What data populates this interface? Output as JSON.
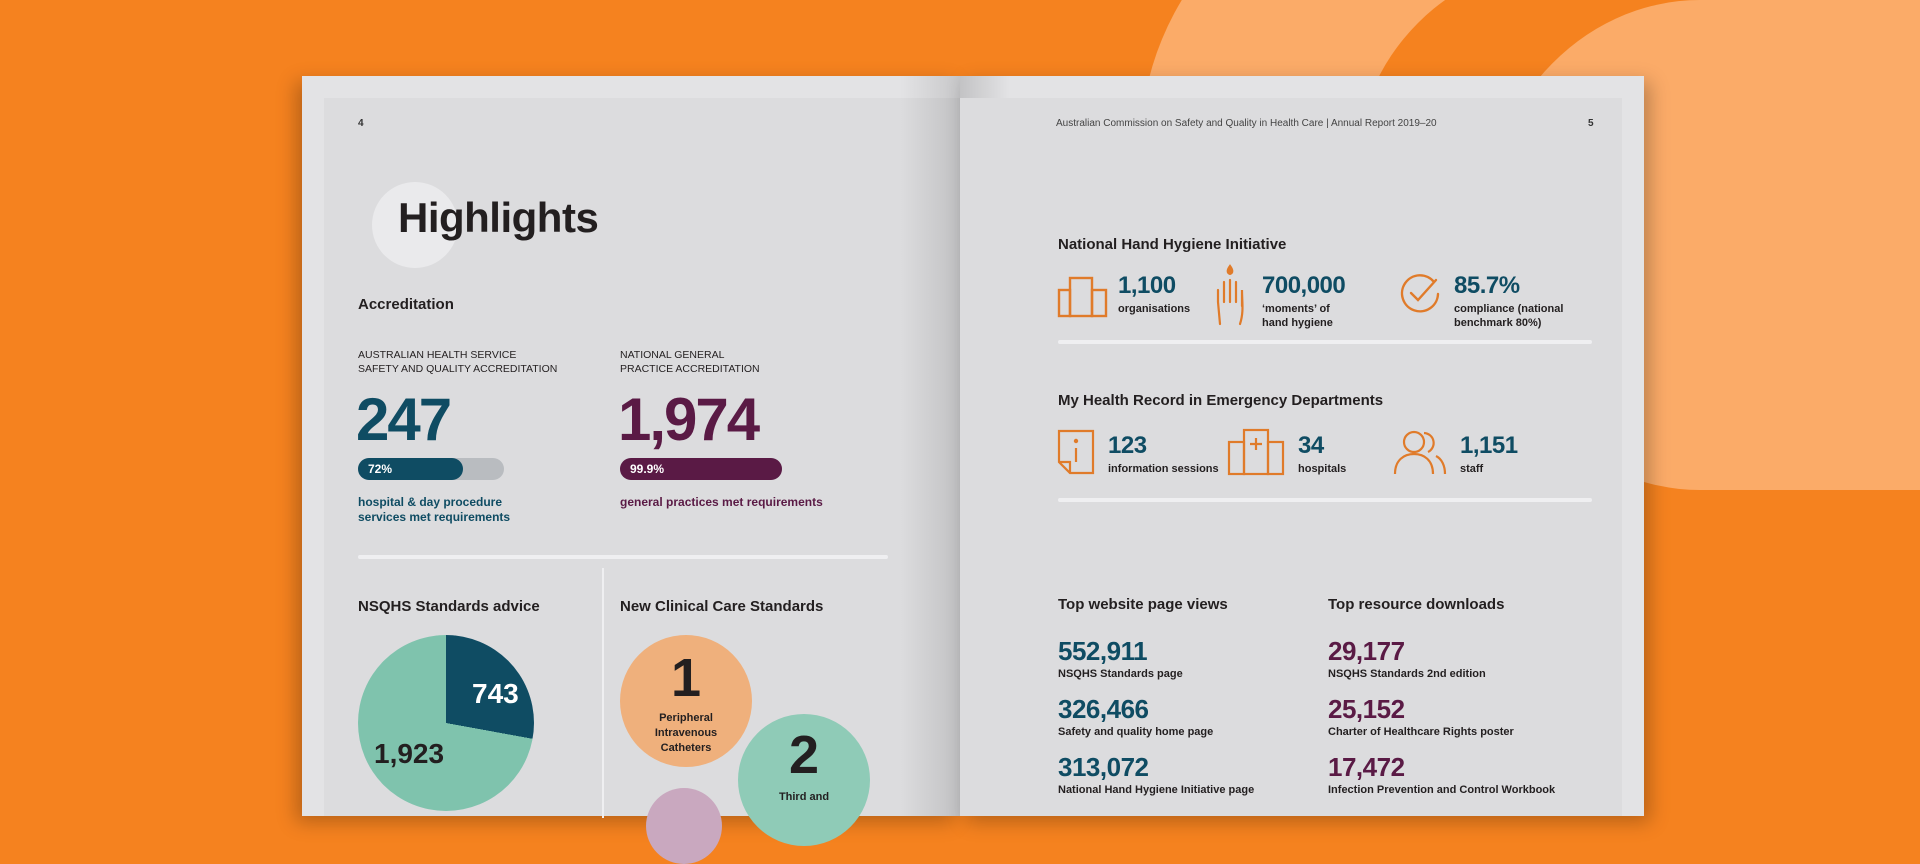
{
  "left_page": {
    "page_number": "4",
    "title": "Highlights",
    "accreditation": {
      "heading": "Accreditation",
      "health_service": {
        "label": "AUSTRALIAN HEALTH SERVICE SAFETY AND QUALITY ACCREDITATION",
        "value": "247",
        "percent_label": "72%",
        "percent": 72,
        "caption": "hospital & day procedure services met requirements"
      },
      "general_practice": {
        "label": "NATIONAL GENERAL PRACTICE ACCREDITATION",
        "value": "1,974",
        "percent_label": "99.9%",
        "percent": 99.9,
        "caption": "general practices met requirements"
      }
    },
    "nsqhs": {
      "heading": "NSQHS Standards advice",
      "slices": [
        {
          "value": 743,
          "label": "743",
          "color": "#0f4c63"
        },
        {
          "value": 1923,
          "label": "1,923",
          "color": "#7fc3ad"
        }
      ]
    },
    "clinical_care": {
      "heading": "New Clinical Care Standards",
      "items": [
        {
          "number": "1",
          "label": "Peripheral Intravenous Catheters",
          "color": "#efb07c"
        },
        {
          "number": "2",
          "label": "Third and",
          "color": "#8fcbb7"
        }
      ]
    }
  },
  "right_page": {
    "page_number": "5",
    "header": "Australian Commission on Safety and Quality in Health Care  |  Annual Report 2019–20",
    "hand_hygiene": {
      "heading": "National Hand Hygiene Initiative",
      "stats": [
        {
          "icon": "buildings-icon",
          "value": "1,100",
          "label": "organisations"
        },
        {
          "icon": "hand-icon",
          "value": "700,000",
          "label": "‘moments’ of hand hygiene"
        },
        {
          "icon": "check-circle-icon",
          "value": "85.7%",
          "label": "compliance (national benchmark 80%)"
        }
      ]
    },
    "my_health_record": {
      "heading": "My Health Record in Emergency Departments",
      "stats": [
        {
          "icon": "info-document-icon",
          "value": "123",
          "label": "information sessions"
        },
        {
          "icon": "hospital-icon",
          "value": "34",
          "label": "hospitals"
        },
        {
          "icon": "people-icon",
          "value": "1,151",
          "label": "staff"
        }
      ]
    },
    "page_views": {
      "heading": "Top website page views",
      "items": [
        {
          "value": "552,911",
          "label": "NSQHS Standards page"
        },
        {
          "value": "326,466",
          "label": "Safety and quality home page"
        },
        {
          "value": "313,072",
          "label": "National Hand Hygiene Initiative page"
        }
      ]
    },
    "downloads": {
      "heading": "Top resource downloads",
      "items": [
        {
          "value": "29,177",
          "label": "NSQHS Standards 2nd edition"
        },
        {
          "value": "25,152",
          "label": "Charter of Healthcare Rights poster"
        },
        {
          "value": "17,472",
          "label": "Infection Prevention and Control Workbook"
        }
      ]
    }
  },
  "colors": {
    "background": "#f5821f",
    "teal": "#0f4c63",
    "plum": "#5a1a45",
    "icon": "#e07b2a"
  }
}
